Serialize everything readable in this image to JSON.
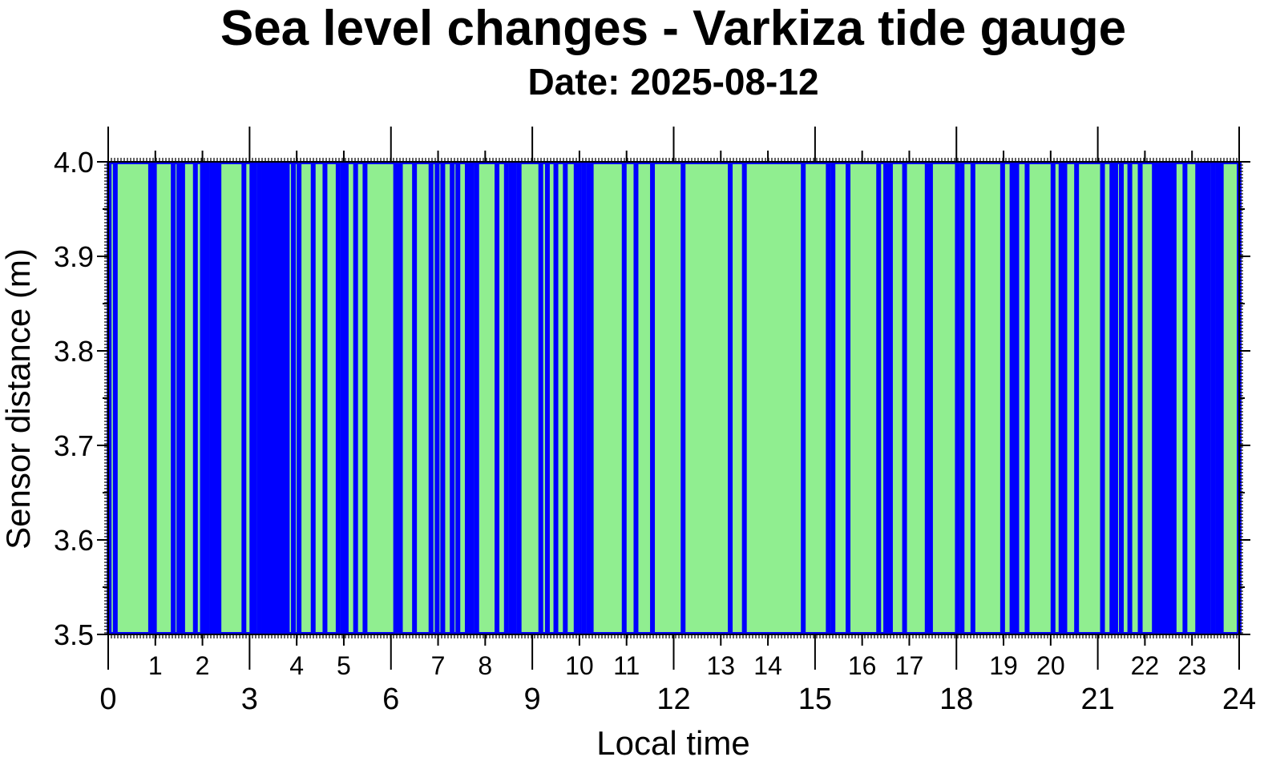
{
  "chart_data": {
    "type": "area",
    "title": "Sea level changes - Varkiza tide gauge",
    "subtitle": "Date: 2025-08-12",
    "xlabel": "Local time",
    "ylabel": "Sensor distance (m)",
    "xlim": [
      0,
      24
    ],
    "ylim": [
      3.5,
      4.0
    ],
    "x_major_ticks": [
      "0",
      "3",
      "6",
      "9",
      "12",
      "15",
      "18",
      "21",
      "24"
    ],
    "x_minor_ticks": [
      "1",
      "2",
      "4",
      "5",
      "7",
      "8",
      "10",
      "11",
      "13",
      "14",
      "16",
      "17",
      "19",
      "20",
      "22",
      "23"
    ],
    "y_ticks": [
      "3.5",
      "3.6",
      "3.7",
      "3.8",
      "3.9",
      "4.0"
    ],
    "fill_color": "#90EE90",
    "line_color": "#0000FF",
    "fill_description": "Sensor distance stays at 4.0 m for most of the day; brief drops to 3.5 m appear as blue spikes",
    "drops_to_min_hours": [
      0.02,
      0.15,
      0.9,
      0.98,
      1.38,
      1.5,
      1.58,
      1.85,
      2.0,
      2.1,
      2.2,
      2.25,
      2.3,
      2.35,
      2.88,
      3.05,
      3.1,
      3.2,
      3.3,
      3.35,
      3.42,
      3.47,
      3.52,
      3.57,
      3.62,
      3.65,
      3.7,
      3.75,
      3.8,
      3.93,
      4.05,
      4.35,
      4.6,
      4.88,
      4.98,
      5.05,
      5.25,
      5.45,
      6.1,
      6.2,
      6.5,
      6.85,
      6.98,
      7.1,
      7.3,
      7.42,
      7.62,
      7.72,
      7.82,
      8.25,
      8.45,
      8.55,
      8.62,
      8.72,
      9.18,
      9.32,
      9.5,
      9.7,
      9.93,
      10.0,
      10.1,
      10.2,
      10.25,
      10.95,
      11.2,
      11.55,
      12.2,
      13.2,
      13.5,
      14.75,
      15.28,
      15.38,
      15.7,
      16.35,
      16.5,
      16.6,
      16.9,
      17.38,
      17.45,
      18.02,
      18.12,
      18.35,
      18.98,
      19.18,
      19.28,
      19.5,
      20.05,
      20.22,
      20.3,
      20.55,
      21.1,
      21.3,
      21.38,
      21.5,
      21.68,
      21.9,
      22.2,
      22.25,
      22.3,
      22.35,
      22.4,
      22.45,
      22.5,
      22.55,
      22.62,
      22.85,
      23.12,
      23.2,
      23.28,
      23.35,
      23.45,
      23.55,
      23.62,
      24.0
    ]
  }
}
